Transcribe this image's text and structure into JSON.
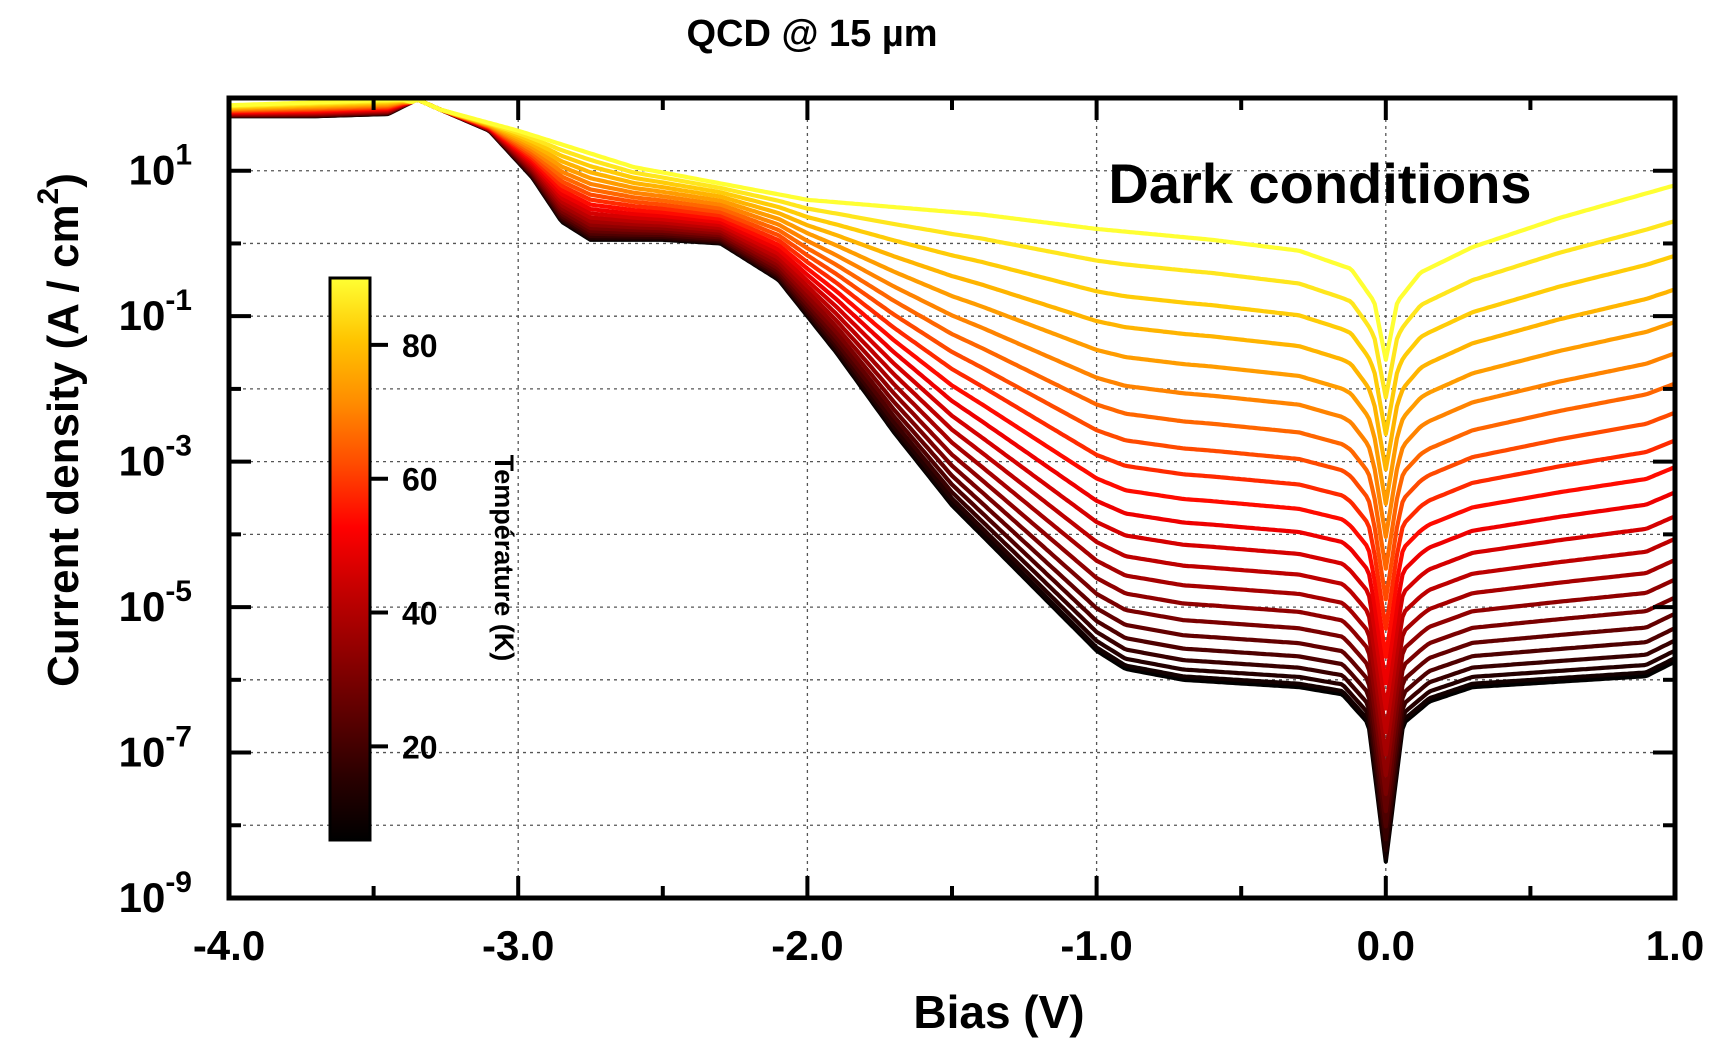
{
  "chart_data": {
    "type": "line",
    "title": "QCD @ 15 µm",
    "xlabel": "Bias (V)",
    "ylabel": "Current density (A / cm",
    "ylabel_superscript": "2",
    "ylabel_close": ")",
    "annotation": "Dark conditions",
    "xlim": [
      -4.0,
      1.0
    ],
    "ylim_log10": [
      -9,
      2.0
    ],
    "yscale": "log",
    "grid": true,
    "x_ticks": [
      {
        "value": -4.0,
        "label": "-4.0"
      },
      {
        "value": -3.0,
        "label": "-3.0"
      },
      {
        "value": -2.0,
        "label": "-2.0"
      },
      {
        "value": -1.0,
        "label": "-1.0"
      },
      {
        "value": 0.0,
        "label": "0.0"
      },
      {
        "value": 1.0,
        "label": "1.0"
      }
    ],
    "x_minor_ticks": [
      -3.5,
      -2.5,
      -1.5,
      -0.5,
      0.5
    ],
    "y_ticks": [
      {
        "exp": 1,
        "base": "10",
        "sup": "1"
      },
      {
        "exp": -1,
        "base": "10",
        "sup": "-1"
      },
      {
        "exp": -3,
        "base": "10",
        "sup": "-3"
      },
      {
        "exp": -5,
        "base": "10",
        "sup": "-5"
      },
      {
        "exp": -7,
        "base": "10",
        "sup": "-7"
      },
      {
        "exp": -9,
        "base": "10",
        "sup": "-9"
      }
    ],
    "y_minor_ticks": [
      2,
      0,
      -2,
      -4,
      -6,
      -8
    ],
    "colorbar": {
      "label": "Température (K)",
      "range": [
        6,
        90
      ],
      "ticks": [
        {
          "value": 20,
          "label": "20"
        },
        {
          "value": 40,
          "label": "40"
        },
        {
          "value": 60,
          "label": "60"
        },
        {
          "value": 80,
          "label": "80"
        }
      ],
      "colors": [
        "#000000",
        "#2a0000",
        "#5c0000",
        "#900000",
        "#c40000",
        "#ff0000",
        "#ff4a00",
        "#ff8c00",
        "#ffc400",
        "#ffff33"
      ]
    },
    "series_model": {
      "description": "One curve per temperature; values are log10 of current density (A/cm^2) vs bias (V)",
      "temperatures": [
        6,
        10,
        14,
        18,
        22,
        26,
        30,
        34,
        38,
        42,
        46,
        50,
        54,
        58,
        62,
        66,
        70,
        74,
        78,
        82,
        86,
        90
      ],
      "cold_envelope": {
        "x": [
          -4.0,
          -3.7,
          -3.45,
          -3.35,
          -3.1,
          -2.95,
          -2.85,
          -2.75,
          -2.5,
          -2.3,
          -2.1,
          -1.9,
          -1.7,
          -1.5,
          -1.3,
          -1.1,
          -1.0,
          -0.9,
          -0.7,
          -0.5,
          -0.3,
          -0.15,
          -0.06,
          0.0,
          0.06,
          0.15,
          0.3,
          0.5,
          0.7,
          0.9,
          1.0
        ],
        "log_j": [
          1.75,
          1.75,
          1.78,
          1.98,
          1.55,
          0.9,
          0.3,
          0.05,
          0.05,
          0.0,
          -0.5,
          -1.5,
          -2.6,
          -3.6,
          -4.4,
          -5.2,
          -5.6,
          -5.85,
          -6.0,
          -6.05,
          -6.1,
          -6.2,
          -6.6,
          -8.5,
          -6.6,
          -6.3,
          -6.1,
          -6.05,
          -6.0,
          -5.95,
          -5.75
        ]
      },
      "hot_curve_90K": {
        "x": [
          -4.0,
          -3.4,
          -3.0,
          -2.6,
          -2.2,
          -2.0,
          -1.7,
          -1.4,
          -1.0,
          -0.6,
          -0.3,
          -0.12,
          -0.04,
          0.0,
          0.04,
          0.12,
          0.3,
          0.6,
          1.0
        ],
        "log_j": [
          1.9,
          1.98,
          1.55,
          1.05,
          0.75,
          0.6,
          0.5,
          0.4,
          0.2,
          0.05,
          -0.1,
          -0.35,
          -0.8,
          -1.6,
          -0.8,
          -0.4,
          -0.05,
          0.35,
          0.8
        ]
      }
    }
  }
}
